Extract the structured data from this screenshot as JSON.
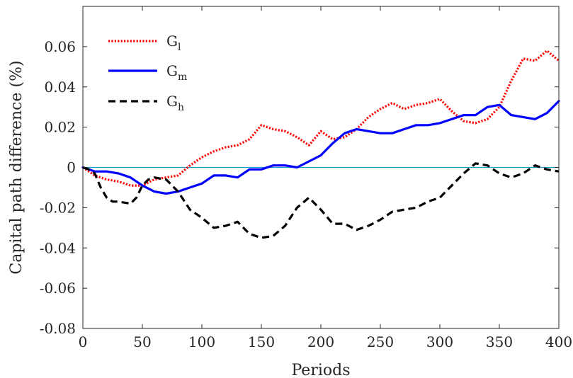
{
  "chart_data": {
    "type": "line",
    "xlabel": "Periods",
    "ylabel": "Capital path difference (%)",
    "xlim": [
      0,
      400
    ],
    "ylim": [
      -0.08,
      0.08
    ],
    "x_ticks": [
      0,
      50,
      100,
      150,
      200,
      250,
      300,
      350,
      400
    ],
    "x_tick_labels": [
      "0",
      "50",
      "100",
      "150",
      "200",
      "250",
      "300",
      "350",
      "400"
    ],
    "y_ticks": [
      -0.08,
      -0.06,
      -0.04,
      -0.02,
      0,
      0.02,
      0.04,
      0.06
    ],
    "y_tick_labels": [
      "-0.08",
      "-0.06",
      "-0.04",
      "-0.02",
      "0",
      "0.02",
      "0.04",
      "0.06"
    ],
    "grid": false,
    "legend_position": "top-left",
    "reference_line": {
      "y": 0,
      "color": "#1f9bd1"
    },
    "series": [
      {
        "name": "G_l",
        "legend_main": "G",
        "legend_sub": "l",
        "color": "#ff0000",
        "style": "dotted",
        "x": [
          0,
          5,
          10,
          20,
          30,
          40,
          50,
          60,
          70,
          80,
          90,
          100,
          110,
          120,
          130,
          140,
          150,
          160,
          170,
          180,
          190,
          200,
          210,
          220,
          230,
          240,
          250,
          260,
          270,
          280,
          290,
          300,
          310,
          320,
          330,
          340,
          350,
          360,
          370,
          380,
          390,
          400
        ],
        "y": [
          0,
          -0.002,
          -0.004,
          -0.006,
          -0.007,
          -0.009,
          -0.009,
          -0.006,
          -0.005,
          -0.004,
          0.001,
          0.005,
          0.008,
          0.01,
          0.011,
          0.014,
          0.021,
          0.019,
          0.018,
          0.015,
          0.011,
          0.018,
          0.014,
          0.015,
          0.019,
          0.025,
          0.029,
          0.032,
          0.029,
          0.031,
          0.032,
          0.034,
          0.028,
          0.023,
          0.022,
          0.024,
          0.03,
          0.043,
          0.054,
          0.053,
          0.058,
          0.053
        ]
      },
      {
        "name": "G_m",
        "legend_main": "G",
        "legend_sub": "m",
        "color": "#0000ff",
        "style": "solid",
        "x": [
          0,
          5,
          10,
          20,
          30,
          40,
          50,
          60,
          70,
          80,
          90,
          100,
          110,
          120,
          130,
          140,
          150,
          160,
          170,
          180,
          190,
          200,
          210,
          220,
          230,
          240,
          250,
          260,
          270,
          280,
          290,
          300,
          310,
          320,
          330,
          340,
          350,
          360,
          370,
          380,
          390,
          400
        ],
        "y": [
          0,
          -0.001,
          -0.002,
          -0.002,
          -0.003,
          -0.005,
          -0.009,
          -0.012,
          -0.013,
          -0.012,
          -0.01,
          -0.008,
          -0.004,
          -0.004,
          -0.005,
          -0.001,
          -0.001,
          0.001,
          0.001,
          0,
          0.003,
          0.006,
          0.012,
          0.017,
          0.019,
          0.018,
          0.017,
          0.017,
          0.019,
          0.021,
          0.021,
          0.022,
          0.024,
          0.026,
          0.026,
          0.03,
          0.031,
          0.026,
          0.025,
          0.024,
          0.027,
          0.033
        ]
      },
      {
        "name": "G_h",
        "legend_main": "G",
        "legend_sub": "h",
        "color": "#000000",
        "style": "dashed",
        "x": [
          0,
          5,
          10,
          15,
          20,
          25,
          30,
          40,
          45,
          50,
          55,
          60,
          70,
          80,
          90,
          100,
          110,
          120,
          130,
          140,
          150,
          160,
          170,
          180,
          190,
          200,
          210,
          220,
          230,
          240,
          250,
          260,
          270,
          280,
          290,
          300,
          310,
          320,
          330,
          340,
          350,
          360,
          370,
          380,
          390,
          400
        ],
        "y": [
          0,
          -0.001,
          -0.003,
          -0.01,
          -0.015,
          -0.017,
          -0.017,
          -0.018,
          -0.015,
          -0.009,
          -0.006,
          -0.005,
          -0.006,
          -0.012,
          -0.021,
          -0.025,
          -0.03,
          -0.029,
          -0.027,
          -0.033,
          -0.035,
          -0.034,
          -0.029,
          -0.02,
          -0.015,
          -0.021,
          -0.028,
          -0.028,
          -0.031,
          -0.029,
          -0.026,
          -0.022,
          -0.021,
          -0.02,
          -0.017,
          -0.015,
          -0.009,
          -0.003,
          0.002,
          0.001,
          -0.003,
          -0.005,
          -0.003,
          0.001,
          -0.001,
          -0.002
        ]
      }
    ]
  }
}
